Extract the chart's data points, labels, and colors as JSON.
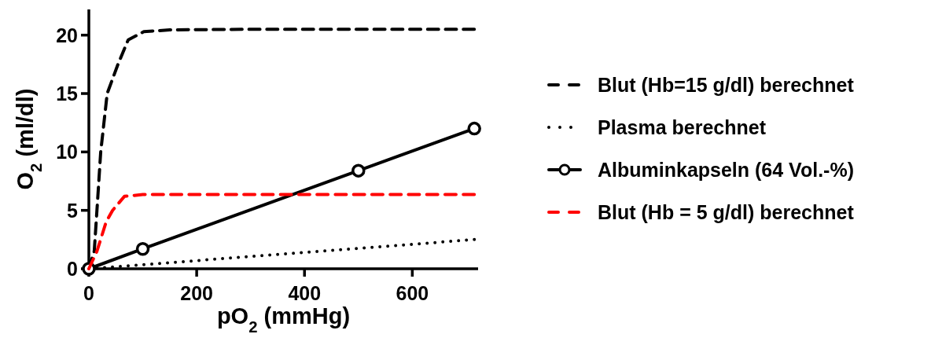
{
  "chart_data": {
    "type": "line",
    "xlabel": "pO$_{2}$ (mmHg)",
    "ylabel": "O$_{2}$ (ml/dl)",
    "xlim": [
      0,
      722
    ],
    "xticks": [
      0,
      200,
      400,
      600
    ],
    "ylim": [
      0,
      22.2
    ],
    "yticks": [
      0,
      5,
      10,
      15,
      20
    ],
    "grid": false,
    "legend": "right",
    "series": [
      {
        "name": "Blut (Hb=15 g/dl) berechnet",
        "color": "#000000",
        "line_style": "dashed",
        "marker": "none",
        "x": [
          0,
          10,
          15,
          22,
          34,
          54,
          73,
          102,
          150,
          300,
          500,
          715
        ],
        "values": [
          0,
          1.5,
          5,
          10,
          15,
          17.5,
          19.6,
          20.3,
          20.45,
          20.5,
          20.5,
          20.5
        ]
      },
      {
        "name": "Plasma berechnet",
        "color": "#000000",
        "line_style": "dotted",
        "marker": "none",
        "x": [
          0,
          715
        ],
        "values": [
          0,
          2.5
        ]
      },
      {
        "name": "Albuminkapseln (64 Vol.-%)",
        "color": "#000000",
        "line_style": "solid",
        "marker": "circle",
        "x": [
          0,
          100,
          500,
          715
        ],
        "values": [
          0,
          1.7,
          8.4,
          12.0
        ]
      },
      {
        "name": "Blut (Hb = 5 g/dl) berechnet",
        "color": "#ff0000",
        "line_style": "dashed",
        "marker": "none",
        "x": [
          0,
          15,
          32,
          44,
          66,
          100,
          300,
          500,
          715
        ],
        "values": [
          0,
          1.5,
          4,
          5,
          6.2,
          6.35,
          6.35,
          6.35,
          6.35
        ]
      }
    ]
  }
}
